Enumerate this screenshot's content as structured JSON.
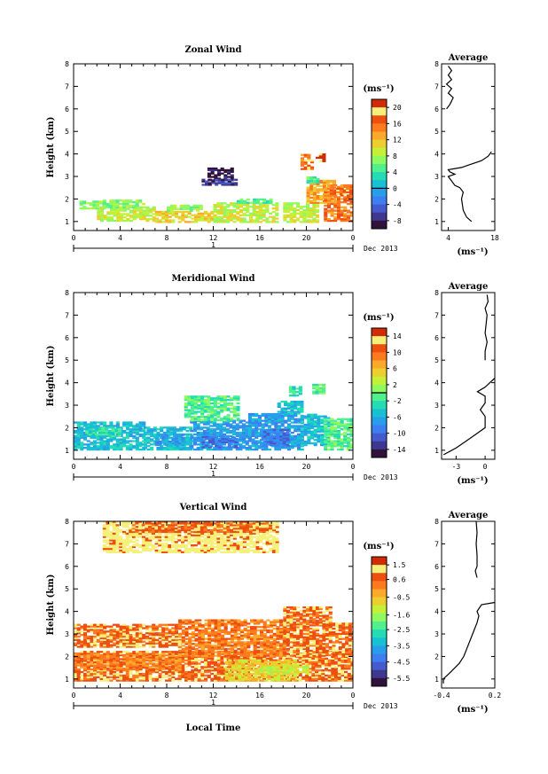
{
  "chart_data": [
    {
      "type": "heatmap",
      "title": "Zonal Wind",
      "ylabel": "Height (km)",
      "x_ticks": [
        "0",
        "4",
        "8",
        "12",
        "16",
        "20",
        "0"
      ],
      "y_ticks": [
        "1",
        "2",
        "3",
        "4",
        "5",
        "6",
        "7",
        "8"
      ],
      "xlim": [
        0,
        24
      ],
      "ylim": [
        0.6,
        8
      ],
      "day_label": "1",
      "date_label": "Dec 2013",
      "colorbar": {
        "unit": "(ms⁻¹)",
        "ticks": [
          "20",
          "16",
          "12",
          "8",
          "4",
          "0",
          "-4",
          "-8"
        ],
        "range": [
          -10,
          22
        ],
        "contour_at": "0"
      },
      "profile": {
        "title": "Average",
        "x_ticks": [
          "4",
          "18"
        ],
        "xlim": [
          2,
          18
        ],
        "xunit": "(ms⁻¹)",
        "points": [
          [
            11,
            1.0
          ],
          [
            9.5,
            1.2
          ],
          [
            8.5,
            1.5
          ],
          [
            8,
            2.0
          ],
          [
            8.5,
            2.3
          ],
          [
            7.5,
            2.5
          ],
          [
            6,
            2.6
          ],
          [
            5,
            2.8
          ],
          [
            4,
            3.0
          ],
          [
            6,
            3.1
          ],
          [
            4.5,
            3.2
          ],
          [
            4,
            3.3
          ],
          [
            8,
            3.4
          ],
          [
            10,
            3.5
          ],
          [
            14,
            3.7
          ],
          [
            16,
            3.9
          ],
          [
            17,
            4.1
          ]
        ],
        "points_upper": [
          [
            3.5,
            6.0
          ],
          [
            4.5,
            6.2
          ],
          [
            5.5,
            6.5
          ],
          [
            4,
            6.7
          ],
          [
            5,
            6.9
          ],
          [
            3.5,
            7.1
          ],
          [
            5,
            7.3
          ],
          [
            4,
            7.5
          ],
          [
            5,
            7.7
          ],
          [
            4,
            7.9
          ]
        ]
      },
      "regions": [
        {
          "t0": 0.5,
          "t1": 2.5,
          "h0": 1.55,
          "h1": 1.9,
          "c": 8
        },
        {
          "t0": 2,
          "t1": 7,
          "h0": 1.0,
          "h1": 1.6,
          "c": 9
        },
        {
          "t0": 2.5,
          "t1": 6,
          "h0": 1.6,
          "h1": 1.95,
          "c": 8
        },
        {
          "t0": 7,
          "t1": 12,
          "h0": 0.95,
          "h1": 1.45,
          "c": 10
        },
        {
          "t0": 8,
          "t1": 11,
          "h0": 1.45,
          "h1": 1.7,
          "c": 8
        },
        {
          "t0": 12,
          "t1": 17.5,
          "h0": 0.95,
          "h1": 1.8,
          "c": 9
        },
        {
          "t0": 14,
          "t1": 17,
          "h0": 1.8,
          "h1": 2.0,
          "c": 7
        },
        {
          "t0": 18,
          "t1": 21,
          "h0": 0.95,
          "h1": 1.8,
          "c": 9
        },
        {
          "t0": 20,
          "t1": 22.5,
          "h0": 1.8,
          "h1": 2.8,
          "c": 11
        },
        {
          "t0": 21.5,
          "t1": 24,
          "h0": 1.0,
          "h1": 2.6,
          "c": 12
        },
        {
          "t0": 22,
          "t1": 24,
          "h0": 2.2,
          "h1": 2.5,
          "c": 13
        },
        {
          "t0": 11.5,
          "t1": 13.5,
          "h0": 2.8,
          "h1": 3.4,
          "c": 0
        },
        {
          "t0": 11,
          "t1": 14,
          "h0": 2.6,
          "h1": 2.85,
          "c": 1
        },
        {
          "t0": 20,
          "t1": 21,
          "h0": 2.7,
          "h1": 3.0,
          "c": 7
        },
        {
          "t0": 19.5,
          "t1": 20.5,
          "h0": 3.3,
          "h1": 3.7,
          "c": 13
        },
        {
          "t0": 20.8,
          "t1": 21.6,
          "h0": 3.65,
          "h1": 4.0,
          "c": 15
        },
        {
          "t0": 19.5,
          "t1": 20.2,
          "h0": 3.7,
          "h1": 4.0,
          "c": 12
        }
      ]
    },
    {
      "type": "heatmap",
      "title": "Meridional Wind",
      "ylabel": "Height (km)",
      "x_ticks": [
        "0",
        "4",
        "8",
        "12",
        "16",
        "20",
        "0"
      ],
      "y_ticks": [
        "1",
        "2",
        "3",
        "4",
        "5",
        "6",
        "7",
        "8"
      ],
      "xlim": [
        0,
        24
      ],
      "ylim": [
        0.6,
        8
      ],
      "day_label": "1",
      "date_label": "Dec 2013",
      "colorbar": {
        "unit": "(ms⁻¹)",
        "ticks": [
          "14",
          "10",
          "6",
          "2",
          "-2",
          "-6",
          "-10",
          "-14"
        ],
        "range": [
          -16,
          16
        ],
        "contour_at": "0"
      },
      "profile": {
        "title": "Average",
        "x_ticks": [
          "-3",
          "0"
        ],
        "xlim": [
          -4.5,
          1
        ],
        "xunit": "(ms⁻¹)",
        "points": [
          [
            -4.3,
            0.8
          ],
          [
            -3,
            1.1
          ],
          [
            -2,
            1.4
          ],
          [
            -1,
            1.7
          ],
          [
            0,
            2.0
          ],
          [
            0,
            2.5
          ],
          [
            -0.5,
            2.8
          ],
          [
            0,
            3.1
          ],
          [
            0,
            3.4
          ],
          [
            -0.8,
            3.6
          ],
          [
            0,
            3.8
          ],
          [
            0.5,
            4.0
          ],
          [
            1,
            4.2
          ]
        ],
        "points_upper": [
          [
            0,
            5.0
          ],
          [
            0,
            5.4
          ],
          [
            0.2,
            5.8
          ],
          [
            0,
            6.2
          ],
          [
            0.1,
            6.6
          ],
          [
            0.2,
            7.0
          ],
          [
            0,
            7.3
          ],
          [
            0.3,
            7.6
          ],
          [
            0.2,
            7.9
          ]
        ]
      },
      "regions": [
        {
          "t0": 0,
          "t1": 6,
          "h0": 1.0,
          "h1": 2.2,
          "c": 5
        },
        {
          "t0": 1,
          "t1": 4,
          "h0": 1.6,
          "h1": 2.0,
          "c": 6
        },
        {
          "t0": 6,
          "t1": 10,
          "h0": 1.0,
          "h1": 2.0,
          "c": 5
        },
        {
          "t0": 7,
          "t1": 9.5,
          "h0": 1.2,
          "h1": 1.7,
          "c": 4
        },
        {
          "t0": 10,
          "t1": 15,
          "h0": 1.0,
          "h1": 2.3,
          "c": 4
        },
        {
          "t0": 11,
          "t1": 14,
          "h0": 1.1,
          "h1": 1.6,
          "c": 3
        },
        {
          "t0": 9.5,
          "t1": 14,
          "h0": 2.3,
          "h1": 3.4,
          "c": 7
        },
        {
          "t0": 15,
          "t1": 19.5,
          "h0": 1.0,
          "h1": 2.6,
          "c": 4
        },
        {
          "t0": 16,
          "t1": 18.5,
          "h0": 1.2,
          "h1": 1.9,
          "c": 3
        },
        {
          "t0": 17.5,
          "t1": 19.5,
          "h0": 2.6,
          "h1": 3.2,
          "c": 5
        },
        {
          "t0": 19.5,
          "t1": 22,
          "h0": 1.2,
          "h1": 2.6,
          "c": 5
        },
        {
          "t0": 21.5,
          "t1": 24,
          "h0": 1.0,
          "h1": 2.4,
          "c": 7
        },
        {
          "t0": 18.5,
          "t1": 19.5,
          "h0": 3.4,
          "h1": 3.8,
          "c": 6
        },
        {
          "t0": 20.5,
          "t1": 21.5,
          "h0": 3.5,
          "h1": 3.9,
          "c": 7
        }
      ]
    },
    {
      "type": "heatmap",
      "title": "Vertical Wind",
      "ylabel": "Height (km)",
      "x_ticks": [
        "0",
        "4",
        "8",
        "12",
        "16",
        "20",
        "0"
      ],
      "y_ticks": [
        "1",
        "2",
        "3",
        "4",
        "5",
        "6",
        "7",
        "8"
      ],
      "xlim": [
        0,
        24
      ],
      "ylim": [
        0.6,
        8
      ],
      "day_label": "1",
      "date_label": "Dec 2013",
      "xlabel": "Local Time",
      "colorbar": {
        "unit": "(ms⁻¹)",
        "ticks": [
          "1.5",
          "0.6",
          "-0.5",
          "-1.6",
          "-2.5",
          "-3.5",
          "-4.5",
          "-5.5"
        ],
        "range": [
          -6,
          2
        ],
        "contour_at": ""
      },
      "profile": {
        "title": "Average",
        "x_ticks": [
          "-0.4",
          "0.2"
        ],
        "xlim": [
          -0.4,
          0.2
        ],
        "xunit": "(ms⁻¹)",
        "points": [
          [
            -0.38,
            0.8
          ],
          [
            -0.38,
            1.0
          ],
          [
            -0.3,
            1.3
          ],
          [
            -0.2,
            1.7
          ],
          [
            -0.15,
            2.0
          ],
          [
            -0.1,
            2.5
          ],
          [
            -0.05,
            3.0
          ],
          [
            0,
            3.5
          ],
          [
            0.02,
            3.8
          ],
          [
            0.0,
            4.0
          ],
          [
            0.05,
            4.3
          ],
          [
            0.2,
            4.4
          ]
        ],
        "points_upper": [
          [
            0.0,
            5.5
          ],
          [
            -0.02,
            5.8
          ],
          [
            0.0,
            6.0
          ],
          [
            0.0,
            6.5
          ],
          [
            -0.01,
            7.0
          ],
          [
            0.0,
            7.5
          ],
          [
            -0.01,
            8.0
          ]
        ]
      },
      "regions": [
        {
          "t0": 0,
          "t1": 24,
          "h0": 0.9,
          "h1": 2.2,
          "c": 13
        },
        {
          "t0": 0,
          "t1": 9,
          "h0": 1.4,
          "h1": 2.1,
          "c": 12
        },
        {
          "t0": 9,
          "t1": 18,
          "h0": 2.0,
          "h1": 3.6,
          "c": 12
        },
        {
          "t0": 13,
          "t1": 19,
          "h0": 0.9,
          "h1": 1.8,
          "c": 10
        },
        {
          "t0": 16,
          "t1": 20,
          "h0": 1.2,
          "h1": 1.6,
          "c": 9
        },
        {
          "t0": 18,
          "t1": 24,
          "h0": 2.0,
          "h1": 3.5,
          "c": 13
        },
        {
          "t0": 0,
          "t1": 9,
          "h0": 2.4,
          "h1": 3.4,
          "c": 13
        },
        {
          "t0": 18,
          "t1": 22,
          "h0": 3.4,
          "h1": 4.2,
          "c": 13
        },
        {
          "t0": 2.5,
          "t1": 17.5,
          "h0": 6.6,
          "h1": 8.0,
          "c": 14
        },
        {
          "t0": 5,
          "t1": 17,
          "h0": 7.5,
          "h1": 8.0,
          "c": 13
        }
      ]
    }
  ]
}
